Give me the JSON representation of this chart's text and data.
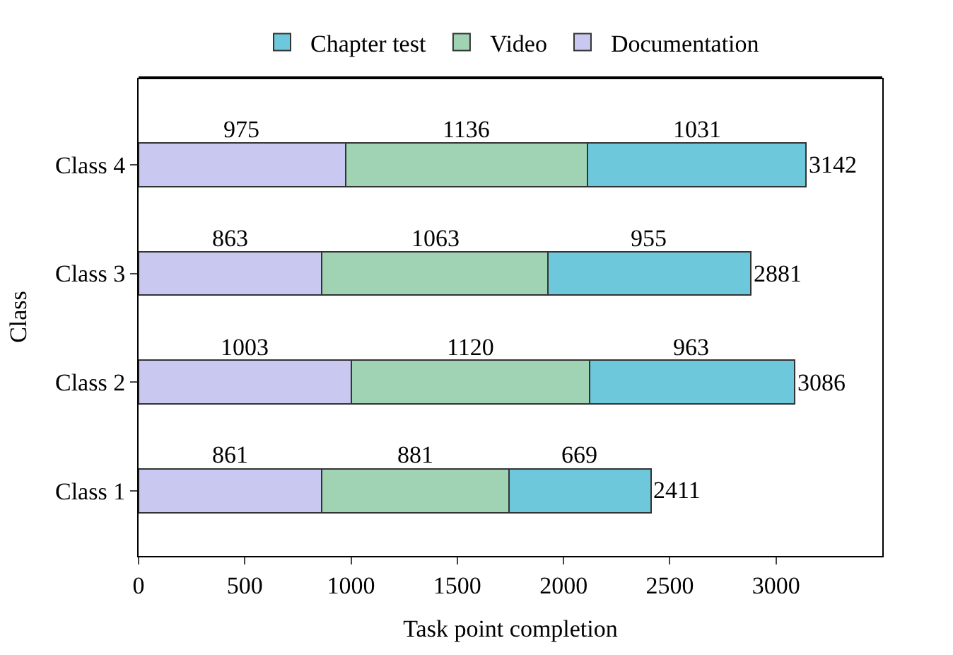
{
  "chart_data": {
    "type": "bar",
    "orientation": "horizontal",
    "stacked": true,
    "xlabel": "Task point completion",
    "ylabel": "Class",
    "categories": [
      "Class 4",
      "Class 3",
      "Class 2",
      "Class 1"
    ],
    "series": [
      {
        "name": "Documentation",
        "color": "#c8c8f0",
        "values": [
          975,
          863,
          1003,
          861
        ]
      },
      {
        "name": "Video",
        "color": "#a0d2b4",
        "values": [
          1136,
          1063,
          1120,
          881
        ]
      },
      {
        "name": "Chapter test",
        "color": "#6ec8dc",
        "values": [
          1031,
          955,
          963,
          669
        ]
      }
    ],
    "totals": [
      "3142",
      "2881",
      "3086",
      "2411"
    ],
    "data_labels": true,
    "xlim": [
      0,
      3500
    ],
    "xticks": [
      0,
      500,
      1000,
      1500,
      2000,
      2500,
      3000
    ],
    "legend": "top"
  }
}
